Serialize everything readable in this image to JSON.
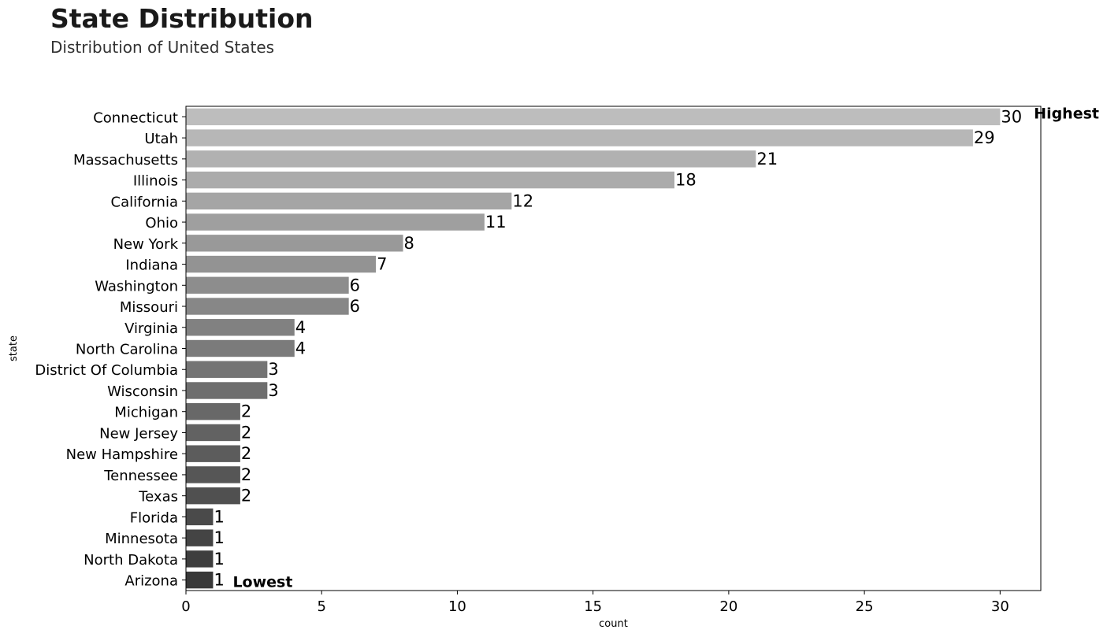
{
  "chart_data": {
    "type": "bar",
    "orientation": "horizontal",
    "title": "State Distribution",
    "subtitle": "Distribution of United States",
    "xlabel": "count",
    "ylabel": "state",
    "xlim": [
      0,
      31.5
    ],
    "xticks": [
      0,
      5,
      10,
      15,
      20,
      25,
      30
    ],
    "categories": [
      "Connecticut",
      "Utah",
      "Massachusetts",
      "Illinois",
      "California",
      "Ohio",
      "New York",
      "Indiana",
      "Washington",
      "Missouri",
      "Virginia",
      "North Carolina",
      "District Of Columbia",
      "Wisconsin",
      "Michigan",
      "New Jersey",
      "New Hampshire",
      "Tennessee",
      "Texas",
      "Florida",
      "Minnesota",
      "North Dakota",
      "Arizona"
    ],
    "values": [
      30,
      29,
      21,
      18,
      12,
      11,
      8,
      7,
      6,
      6,
      4,
      4,
      3,
      3,
      2,
      2,
      2,
      2,
      2,
      1,
      1,
      1,
      1
    ],
    "annotations": [
      {
        "text": "Highest",
        "category": "Connecticut"
      },
      {
        "text": "Lowest",
        "category": "Arizona"
      }
    ],
    "colors": {
      "light": "#bdbdbd",
      "dark": "#383838"
    },
    "grid": false,
    "legend": "none"
  }
}
